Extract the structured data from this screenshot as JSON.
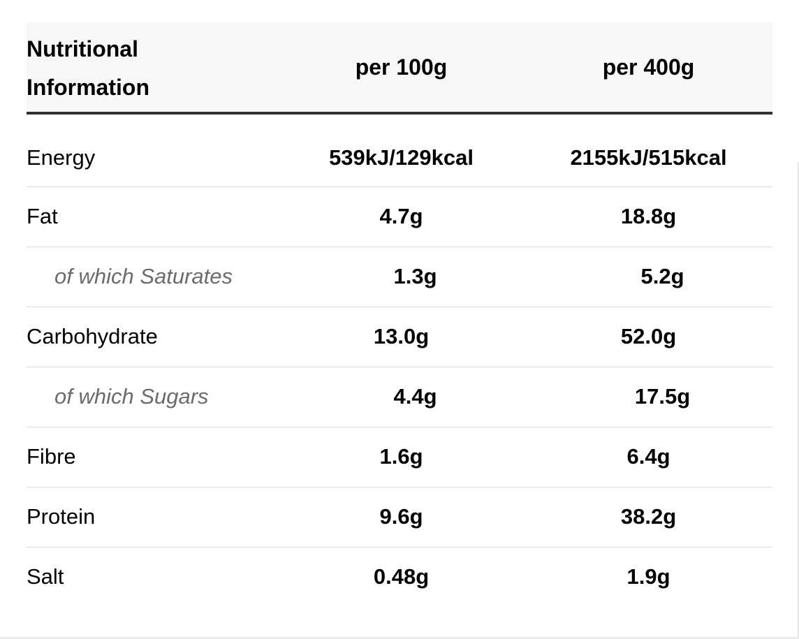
{
  "header": {
    "label_line1": "Nutritional",
    "label_line2": "Information",
    "col_100": "per 100g",
    "col_400": "per 400g"
  },
  "rows": [
    {
      "label": "Energy",
      "per100": "539kJ/129kcal",
      "per400": "2155kJ/515kcal",
      "sub": false
    },
    {
      "label": "Fat",
      "per100": "4.7g",
      "per400": "18.8g",
      "sub": false
    },
    {
      "label": "of which Saturates",
      "per100": "1.3g",
      "per400": "5.2g",
      "sub": true
    },
    {
      "label": "Carbohydrate",
      "per100": "13.0g",
      "per400": "52.0g",
      "sub": false
    },
    {
      "label": "of which Sugars",
      "per100": "4.4g",
      "per400": "17.5g",
      "sub": true
    },
    {
      "label": "Fibre",
      "per100": "1.6g",
      "per400": "6.4g",
      "sub": false
    },
    {
      "label": "Protein",
      "per100": "9.6g",
      "per400": "38.2g",
      "sub": false
    },
    {
      "label": "Salt",
      "per100": "0.48g",
      "per400": "1.9g",
      "sub": false
    }
  ],
  "colors": {
    "header_bg": "#f7f7f7",
    "header_rule": "#333333",
    "row_rule": "#dddddd",
    "sub_label": "#6b6b6b"
  }
}
